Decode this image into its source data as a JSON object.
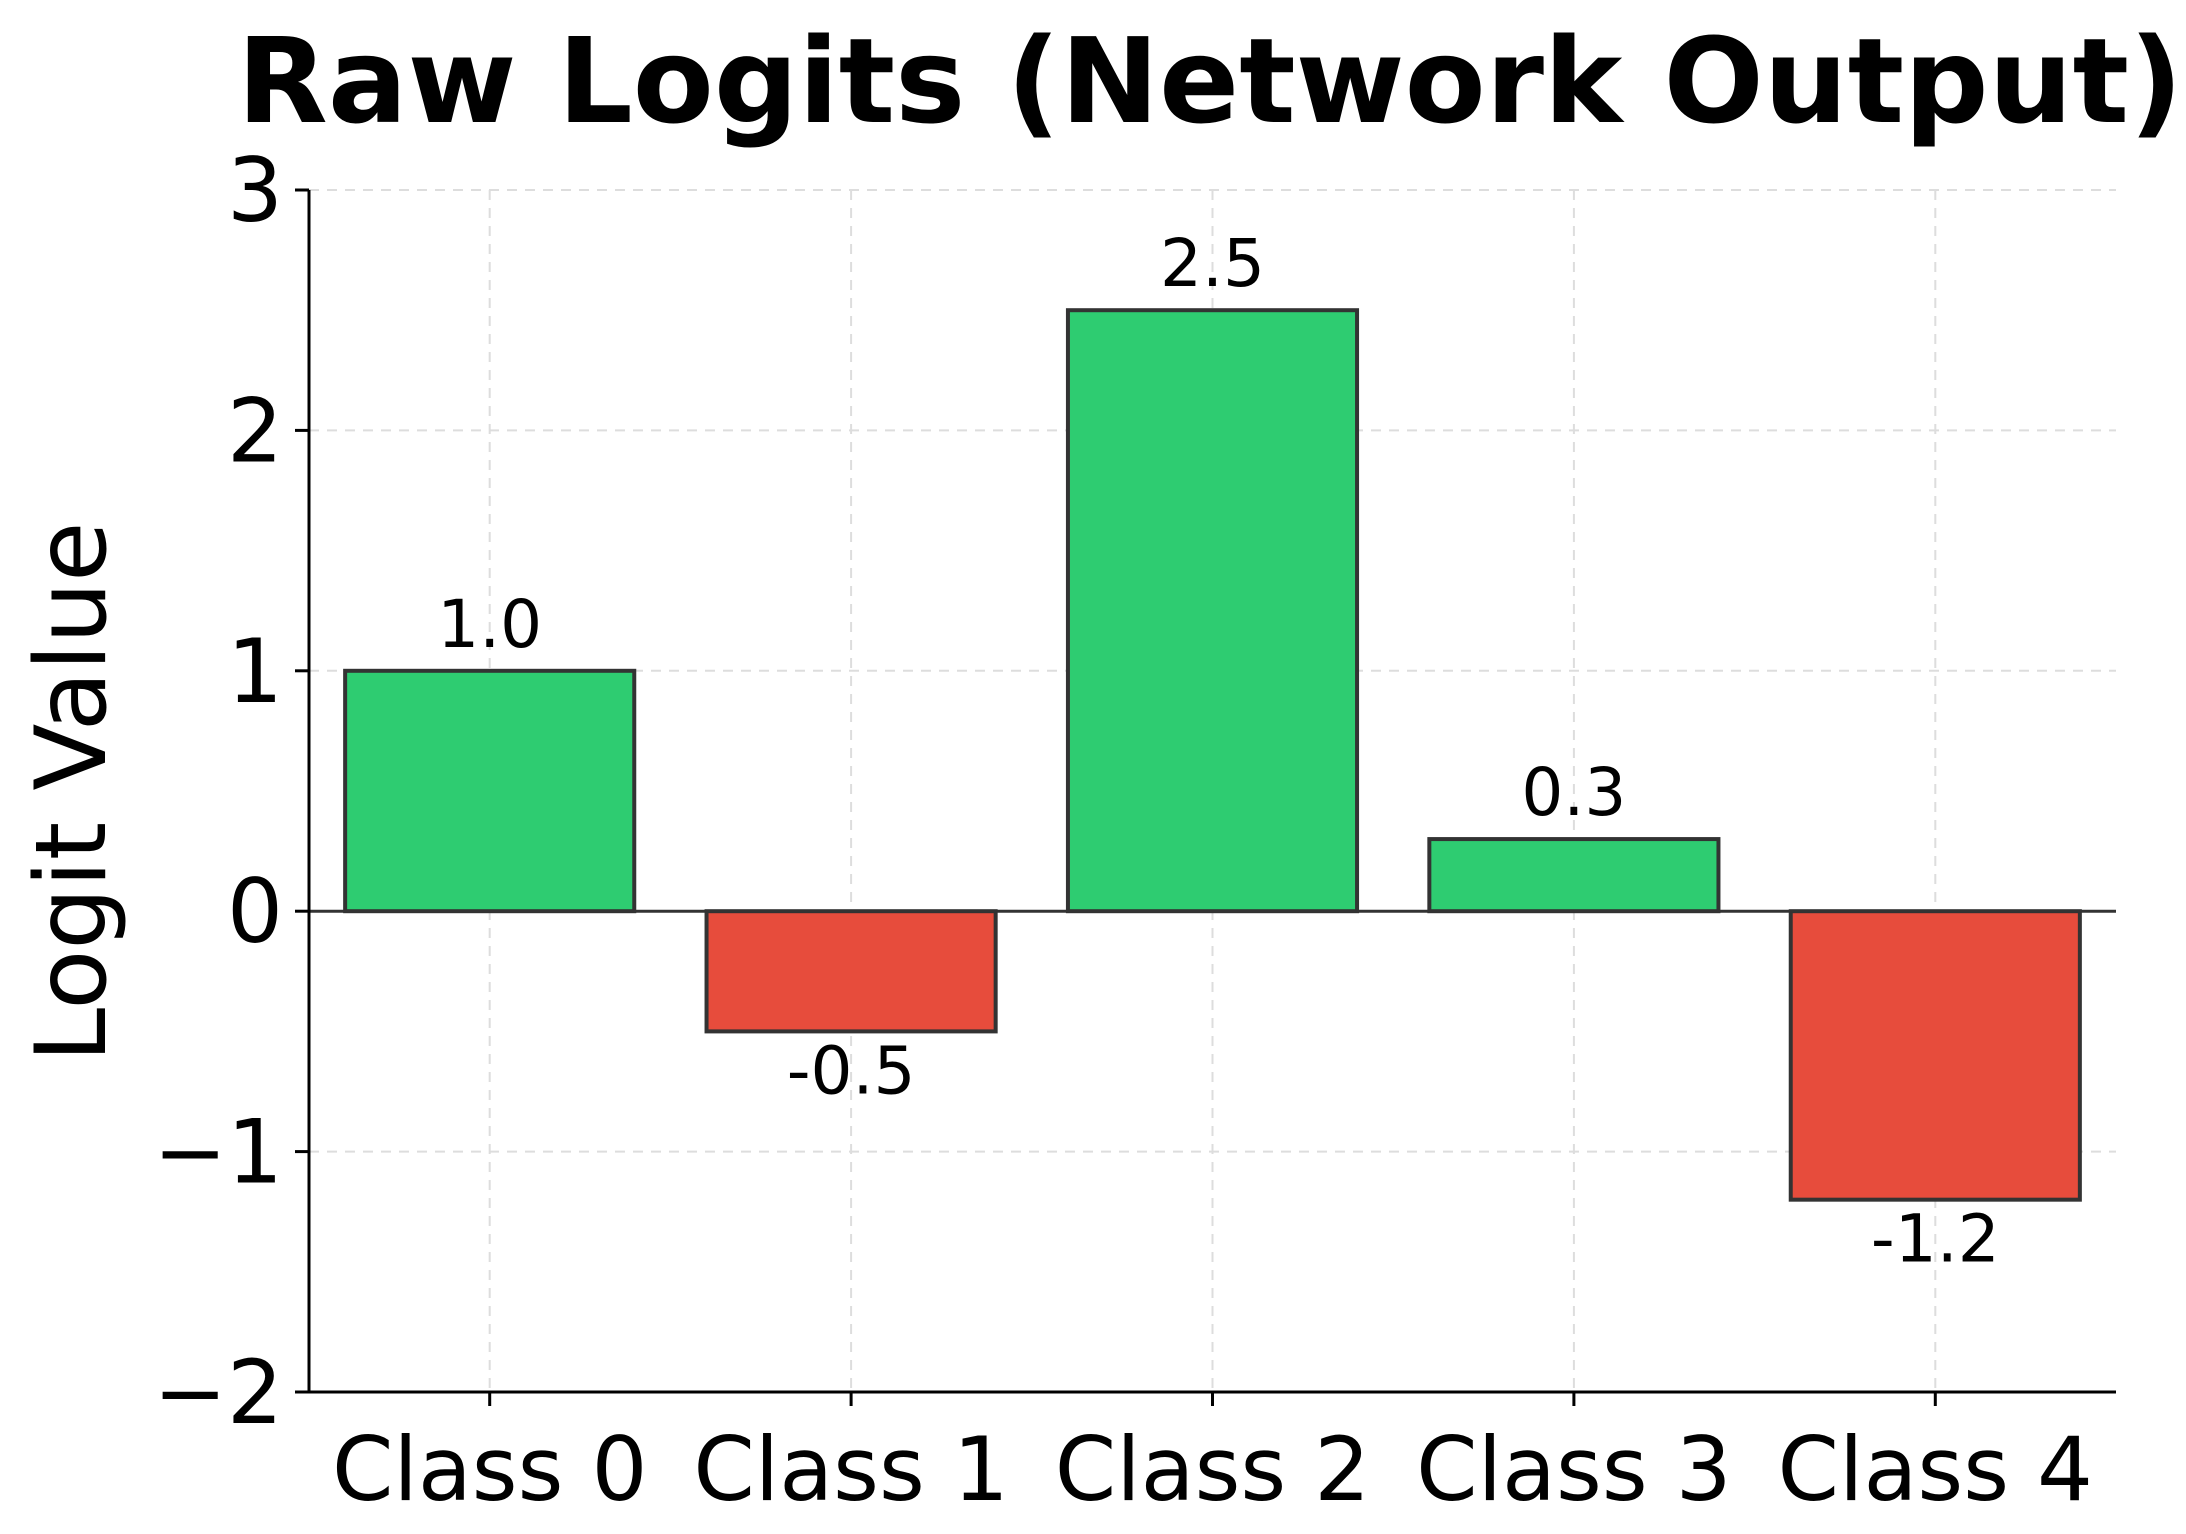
{
  "chart_data": {
    "type": "bar",
    "title": "Raw Logits (Network Output)",
    "xlabel": "",
    "ylabel": "Logit Value",
    "categories": [
      "Class 0",
      "Class 1",
      "Class 2",
      "Class 3",
      "Class 4"
    ],
    "values": [
      1.0,
      -0.5,
      2.5,
      0.3,
      -1.2
    ],
    "data_labels": [
      "1.0",
      "-0.5",
      "2.5",
      "0.3",
      "-1.2"
    ],
    "ylim": [
      -2,
      3
    ],
    "yticks": [
      -2,
      -1,
      0,
      1,
      2,
      3
    ],
    "ytick_labels": [
      "−2",
      "−1",
      "0",
      "1",
      "2",
      "3"
    ],
    "grid": true,
    "zero_line": true,
    "colors": {
      "positive": "#2ecc71",
      "negative": "#e74c3c",
      "bar_edge": "#333333",
      "grid": "#dddddd",
      "axis": "#000000"
    }
  }
}
